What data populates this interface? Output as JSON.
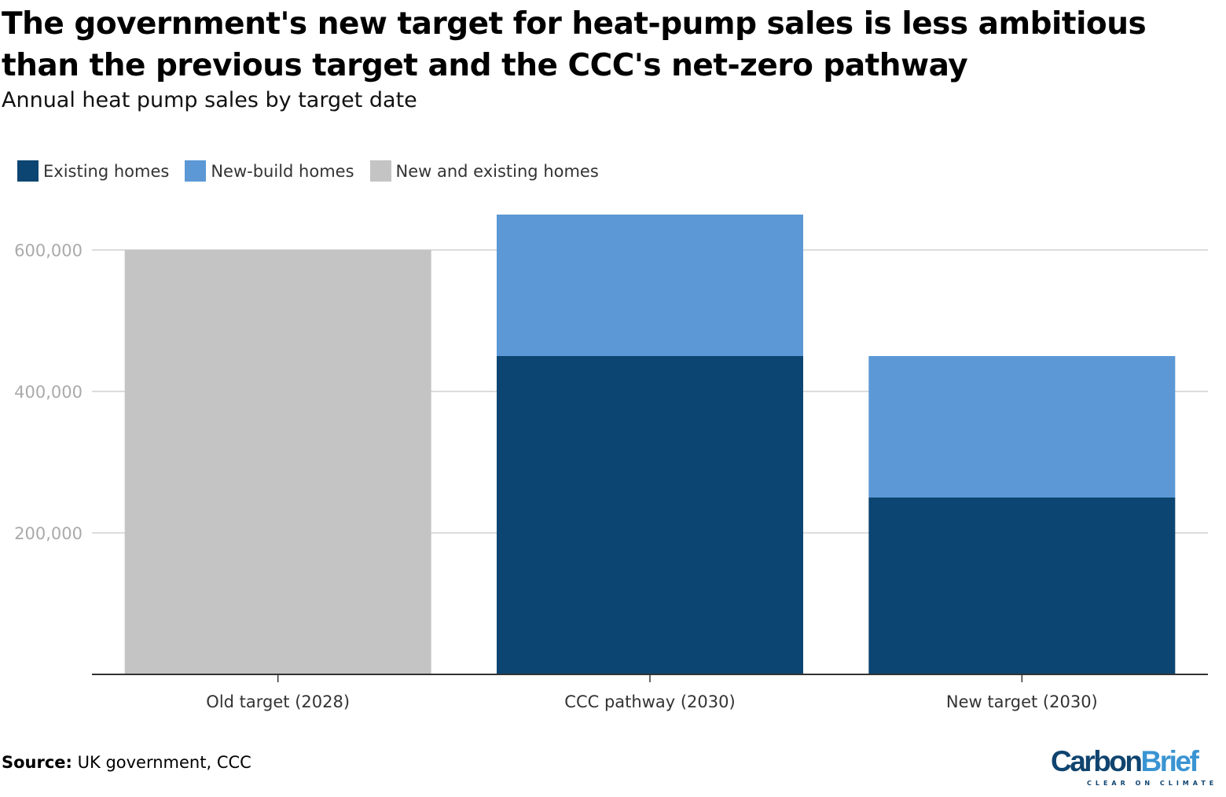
{
  "chart_data": {
    "type": "bar",
    "stacked": true,
    "title": "The government's new target for heat-pump sales is less ambitious than the previous target and the CCC's net-zero pathway",
    "subtitle": "Annual heat pump sales by target date",
    "categories": [
      "Old target (2028)",
      "CCC pathway (2030)",
      "New target (2030)"
    ],
    "series": [
      {
        "name": "Existing homes",
        "color": "#0c4571",
        "values": [
          0,
          450000,
          250000
        ]
      },
      {
        "name": "New-build homes",
        "color": "#5b98d5",
        "values": [
          0,
          200000,
          200000
        ]
      },
      {
        "name": "New and existing homes",
        "color": "#c4c4c4",
        "values": [
          600000,
          0,
          0
        ]
      }
    ],
    "ylim": [
      0,
      650000
    ],
    "yticks": [
      200000,
      400000,
      600000
    ],
    "ytick_labels": [
      "200,000",
      "400,000",
      "600,000"
    ],
    "grid": true,
    "legend_position": "top-left",
    "xlabel": "",
    "ylabel": ""
  },
  "footer": {
    "source_label": "Source:",
    "source_text": " UK government, CCC"
  },
  "logo": {
    "word1": "Carbon",
    "word2": "Brief",
    "tagline": "CLEAR ON CLIMATE",
    "color1": "#10446f",
    "color2": "#3a94d2"
  }
}
